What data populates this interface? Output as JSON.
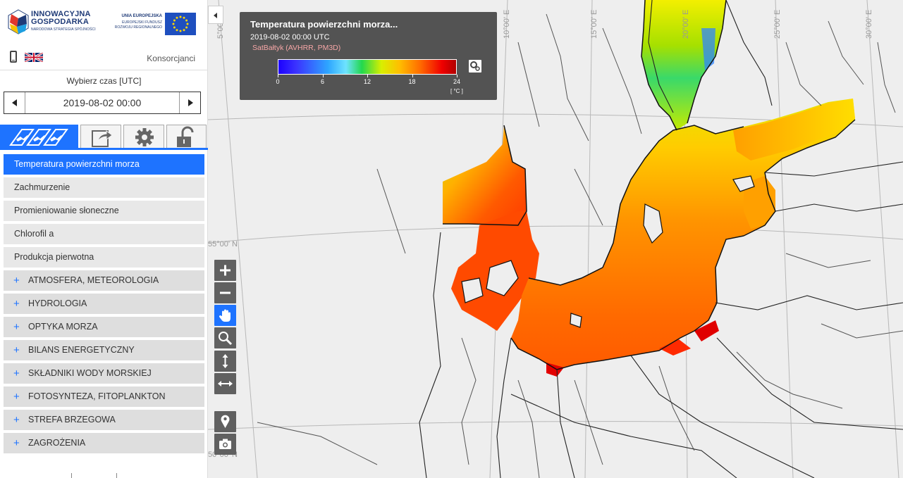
{
  "header": {
    "logo_ig_line1": "INNOWACYJNA",
    "logo_ig_line2": "GOSPODARKA",
    "logo_ig_line3": "NARODOWA STRATEGIA SPÓJNOŚCI",
    "logo_eu_line1": "UNIA EUROPEJSKA",
    "logo_eu_line2": "EUROPEJSKI FUNDUSZ",
    "logo_eu_line3": "ROZWOJU REGIONALNEGO",
    "consortium": "Konsorcjanci"
  },
  "time": {
    "label": "Wybierz czas [UTC]",
    "value": "2019-08-02 00:00"
  },
  "tabs": [
    {
      "name": "layers",
      "icon": "satellite-icon",
      "active": true
    },
    {
      "name": "export",
      "icon": "share-icon",
      "active": false
    },
    {
      "name": "settings",
      "icon": "gear-icon",
      "active": false
    },
    {
      "name": "login",
      "icon": "unlock-icon",
      "active": false
    }
  ],
  "layers": [
    {
      "label": "Temperatura powierzchni morza",
      "active": true
    },
    {
      "label": "Zachmurzenie",
      "active": false
    },
    {
      "label": "Promieniowanie słoneczne",
      "active": false
    },
    {
      "label": "Chlorofil a",
      "active": false
    },
    {
      "label": "Produkcja pierwotna",
      "active": false
    }
  ],
  "groups": [
    {
      "label": "ATMOSFERA, METEOROLOGIA"
    },
    {
      "label": "HYDROLOGIA"
    },
    {
      "label": "OPTYKA MORZA"
    },
    {
      "label": "BILANS ENERGETYCZNY"
    },
    {
      "label": "SKŁADNIKI WODY MORSKIEJ"
    },
    {
      "label": "FOTOSYNTEZA, FITOPLANKTON"
    },
    {
      "label": "STREFA BRZEGOWA"
    },
    {
      "label": "ZAGROŻENIA"
    }
  ],
  "legend": {
    "title": "Temperatura powierzchni morza...",
    "date": "2019-08-02 00:00 UTC",
    "source": "SatBałtyk (AVHRR, PM3D)",
    "unit": "[ °C ]",
    "ticks": [
      "0",
      "6",
      "12",
      "18",
      "24"
    ],
    "range": [
      0,
      24
    ],
    "colors": [
      "#1d00ff",
      "#2ea6ff",
      "#22d84d",
      "#ffbf00",
      "#f00000"
    ]
  },
  "graticule": {
    "lat_labels": [
      "55°00' N",
      "50°00' N"
    ],
    "lon_labels": [
      "5°00' E",
      "10°00' E",
      "15°00' E",
      "20°00' E",
      "25°00' E",
      "30°00' E"
    ]
  },
  "tools": [
    {
      "name": "zoom-in",
      "icon": "plus-icon"
    },
    {
      "name": "zoom-out",
      "icon": "minus-icon"
    },
    {
      "name": "pan",
      "icon": "hand-icon",
      "active": true
    },
    {
      "name": "zoom-box",
      "icon": "magnifier-icon"
    },
    {
      "name": "measure-vertical",
      "icon": "vertical-arrows-icon"
    },
    {
      "name": "measure-horizontal",
      "icon": "horizontal-arrows-icon"
    },
    {
      "name": "point-info",
      "icon": "pin-icon"
    },
    {
      "name": "screenshot",
      "icon": "camera-icon"
    }
  ]
}
